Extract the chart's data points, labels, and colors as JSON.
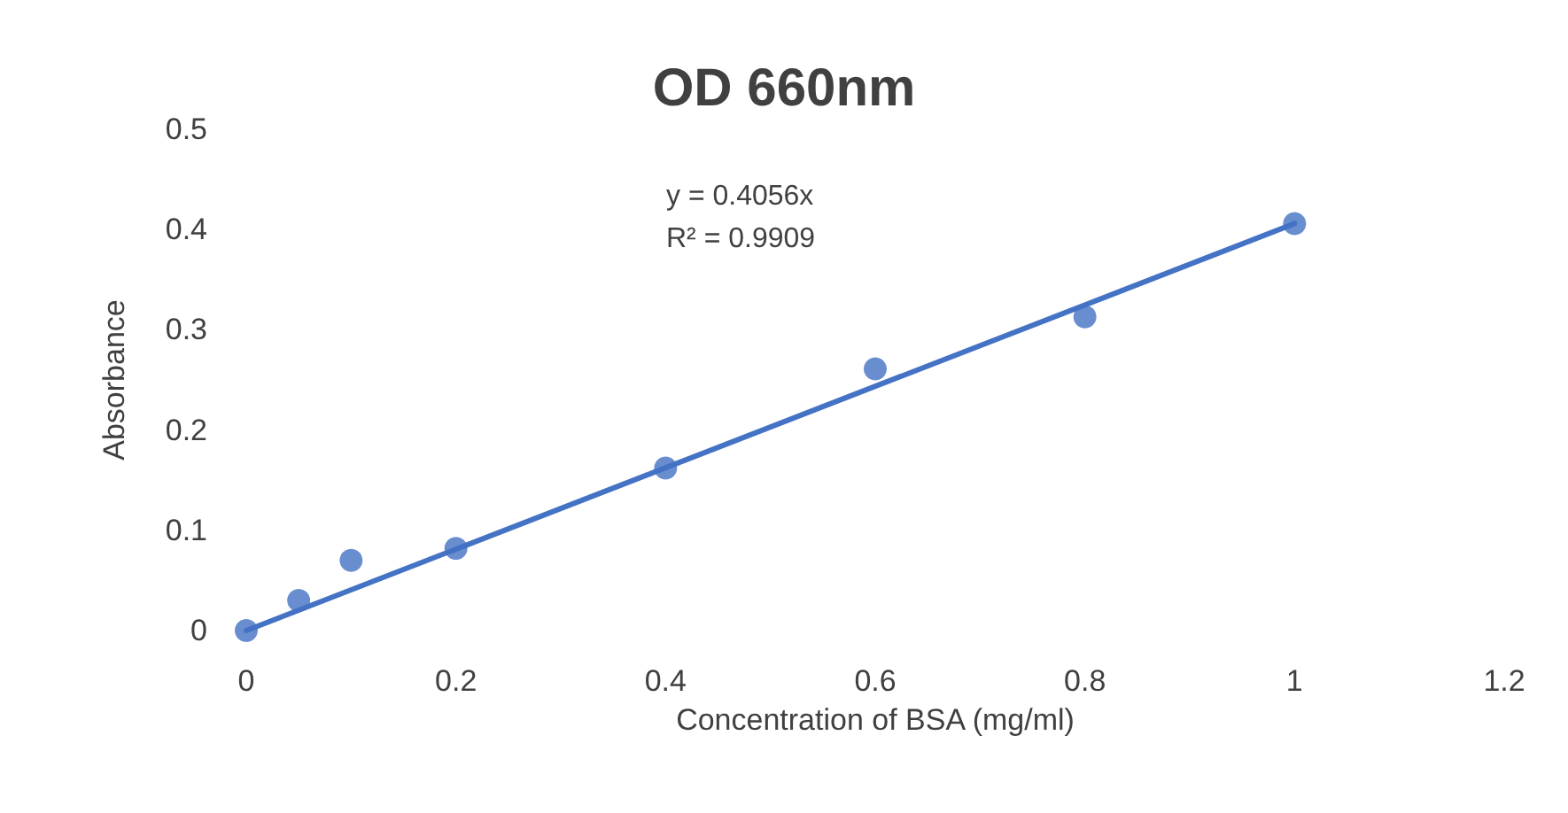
{
  "chart_data": {
    "type": "scatter",
    "title": "OD 660nm",
    "xlabel": "Concentration of BSA (mg/ml)",
    "ylabel": "Absorbance",
    "annotations": [
      "y = 0.4056x",
      "R² = 0.9909"
    ],
    "series": [
      {
        "color": "#4472c4",
        "marker": "circle",
        "x": [
          0,
          0.05,
          0.1,
          0.2,
          0.4,
          0.6,
          0.8,
          1
        ],
        "values": [
          0,
          0.03,
          0.07,
          0.082,
          0.162,
          0.261,
          0.313,
          0.406
        ]
      },
      {
        "type": "line",
        "color": "#4472c4",
        "marker": "none",
        "x": [
          0,
          1
        ],
        "values": [
          0,
          0.406
        ]
      }
    ],
    "xlim": [
      0,
      1.2
    ],
    "xticks": [
      0,
      0.2,
      0.4,
      0.6,
      0.8,
      1,
      1.2
    ],
    "ylim": [
      0,
      0.5
    ],
    "yticks": [
      0,
      0.1,
      0.2,
      0.3,
      0.4,
      0.5
    ],
    "grid": false,
    "line_style": "solid"
  }
}
